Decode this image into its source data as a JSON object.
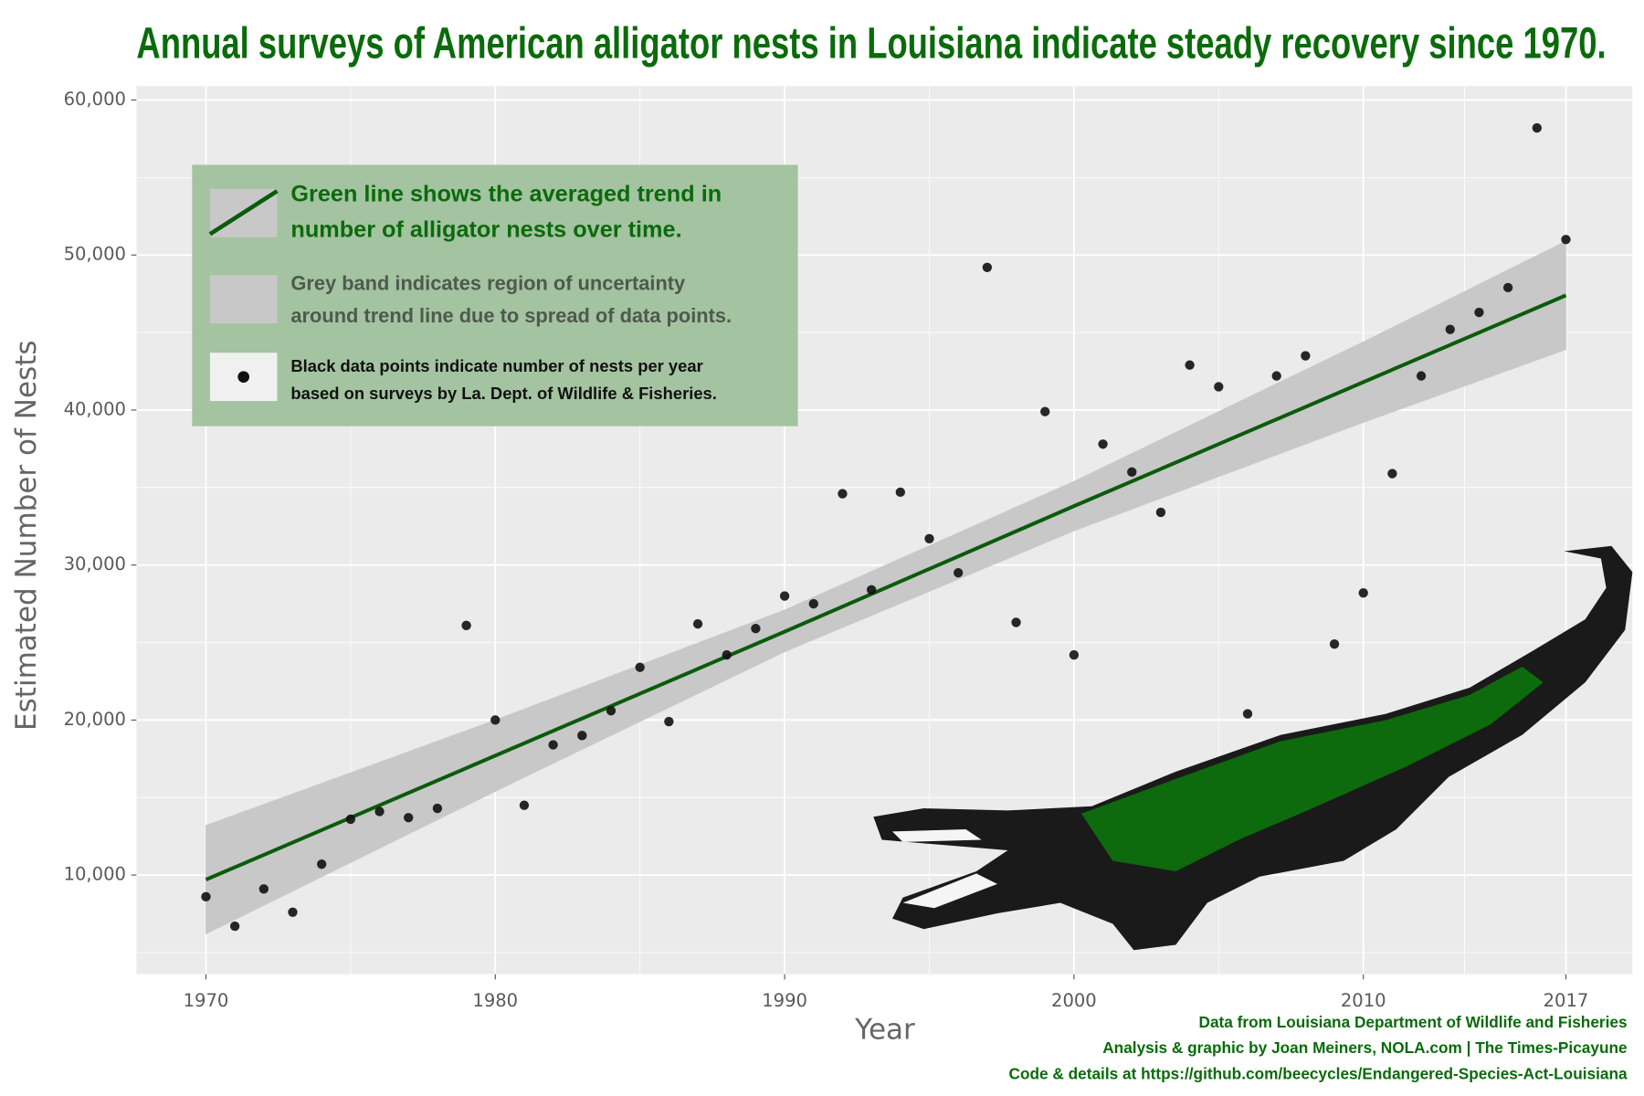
{
  "chart_data": {
    "type": "scatter",
    "title": "Annual surveys of American alligator nests in Louisiana indicate steady recovery since 1970.",
    "x_label": "Year",
    "y_label": "Estimated Number of Nests",
    "x": [
      1970,
      1971,
      1972,
      1973,
      1974,
      1975,
      1976,
      1977,
      1978,
      1979,
      1980,
      1981,
      1982,
      1983,
      1984,
      1985,
      1986,
      1987,
      1988,
      1989,
      1990,
      1991,
      1992,
      1993,
      1994,
      1995,
      1996,
      1997,
      1998,
      1999,
      2000,
      2001,
      2002,
      2003,
      2004,
      2005,
      2006,
      2007,
      2008,
      2009,
      2010,
      2011,
      2012,
      2013,
      2014,
      2015,
      2016,
      2017
    ],
    "values": [
      8600,
      6700,
      9100,
      7600,
      10700,
      13600,
      14100,
      13700,
      14300,
      26100,
      20000,
      14500,
      18400,
      19000,
      20600,
      23400,
      19900,
      26200,
      24200,
      25900,
      28000,
      27500,
      34600,
      28400,
      34700,
      31700,
      29500,
      49200,
      26300,
      39900,
      24200,
      37800,
      36000,
      33400,
      42900,
      41500,
      20400,
      42200,
      43500,
      24900,
      28200,
      35900,
      42200,
      45200,
      46300,
      47900,
      58200,
      51000
    ],
    "color": "#111111",
    "trend": {
      "x": [
        1970,
        1980,
        1990,
        2000,
        2010,
        2017
      ],
      "values": [
        9700,
        17700,
        25700,
        33800,
        41800,
        47400
      ],
      "lower": [
        6200,
        15400,
        24400,
        32200,
        39200,
        43900
      ],
      "upper": [
        13200,
        20000,
        27100,
        35400,
        44400,
        50900
      ],
      "color": "#0a5c0a",
      "band_color": "#c8c8c8"
    },
    "xlim": [
      1967.6,
      2019.3
    ],
    "xticks": [
      1970,
      1980,
      1990,
      2000,
      2010,
      2017
    ],
    "ylim": [
      3600,
      60900
    ],
    "yticks": [
      {
        "value": 10000,
        "label": "10,000"
      },
      {
        "value": 20000,
        "label": "20,000"
      },
      {
        "value": 30000,
        "label": "30,000"
      },
      {
        "value": 40000,
        "label": "40,000"
      },
      {
        "value": 50000,
        "label": "50,000"
      },
      {
        "value": 60000,
        "label": "60,000"
      }
    ],
    "grid": true,
    "legend": [
      [
        "Green line shows the averaged trend in",
        "number of alligator nests over time."
      ],
      [
        "Grey band indicates region of uncertainty",
        "around trend line due to spread of data points."
      ],
      [
        "Black data points indicate number of nests per year",
        "based on surveys by La. Dept. of Wildlife & Fisheries."
      ]
    ],
    "credits": [
      "Data from Louisiana Department of Wildlife and Fisheries",
      "Analysis & graphic by Joan Meiners, NOLA.com | The Times-Picayune",
      "Code & details at https://github.com/beecycles/Endangered-Species-Act-Louisiana"
    ]
  }
}
